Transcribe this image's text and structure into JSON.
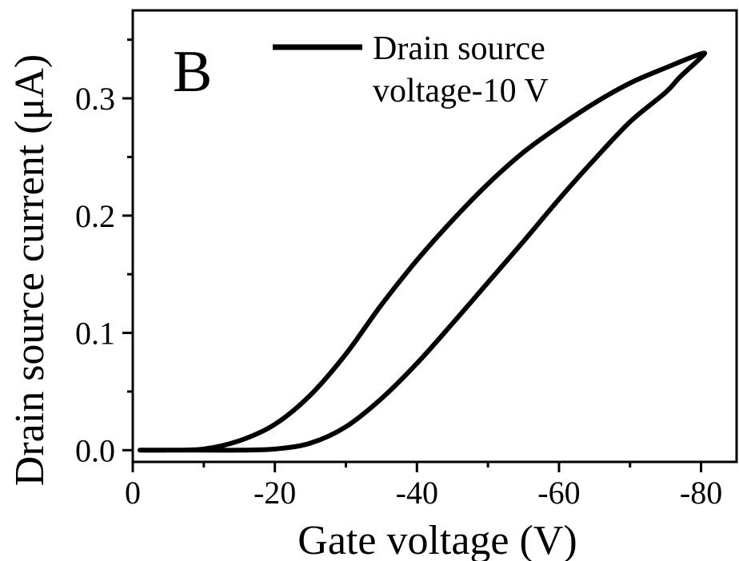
{
  "panel_label": "B",
  "legend": {
    "line1": "Drain source",
    "line2": "voltage-10 V"
  },
  "chart_data": {
    "type": "line",
    "title": "",
    "xlabel": "Gate voltage (V)",
    "ylabel": "Drain source current (μA)",
    "xlim": [
      0,
      -85
    ],
    "ylim": [
      -0.01,
      0.375
    ],
    "xticks": [
      0,
      -20,
      -40,
      -60,
      -80
    ],
    "xtick_labels": [
      "0",
      "-20",
      "-40",
      "-60",
      "-80"
    ],
    "yticks": [
      0.0,
      0.1,
      0.2,
      0.3
    ],
    "ytick_labels": [
      "0.0",
      "0.1",
      "0.2",
      "0.3"
    ],
    "grid": false,
    "legend_position": "top",
    "line_color": "#000000",
    "series": [
      {
        "name": "Drain source voltage-10 V",
        "x": [
          -1,
          -5,
          -10,
          -15,
          -20,
          -25,
          -30,
          -35,
          -40,
          -45,
          -50,
          -55,
          -60,
          -65,
          -70,
          -75,
          -80,
          -80,
          -77,
          -75,
          -70,
          -65,
          -60,
          -55,
          -50,
          -45,
          -40,
          -35,
          -30,
          -25,
          -20,
          -15,
          -10,
          -5,
          -1
        ],
        "y": [
          0.0,
          0.0,
          0.001,
          0.008,
          0.022,
          0.047,
          0.082,
          0.124,
          0.162,
          0.196,
          0.227,
          0.254,
          0.276,
          0.296,
          0.313,
          0.326,
          0.338,
          0.335,
          0.318,
          0.305,
          0.28,
          0.248,
          0.214,
          0.178,
          0.143,
          0.108,
          0.074,
          0.044,
          0.02,
          0.006,
          0.001,
          0.0,
          0.0,
          0.0,
          0.0
        ]
      }
    ]
  }
}
